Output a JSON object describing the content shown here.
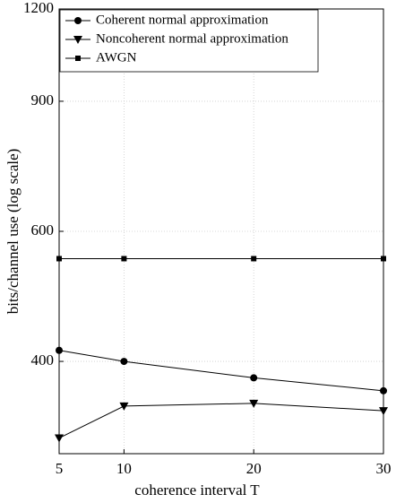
{
  "chart_data": {
    "type": "line",
    "xlabel": "coherence interval T",
    "ylabel": "bits/channel use (log scale)",
    "x": [
      5,
      10,
      20,
      30
    ],
    "series": [
      {
        "name": "Coherent normal approximation",
        "color": "#000000",
        "marker": "circle",
        "values": [
          414,
          400,
          380,
          365
        ]
      },
      {
        "name": "Noncoherent normal approximation",
        "color": "#000000",
        "marker": "triangle-down",
        "values": [
          315,
          348,
          351,
          343
        ]
      },
      {
        "name": "AWGN",
        "color": "#000000",
        "marker": "square",
        "values": [
          551,
          551,
          551,
          551
        ]
      }
    ],
    "xlim": [
      5,
      30
    ],
    "xticks": [
      5,
      10,
      20,
      30
    ],
    "ylim": [
      300,
      1200
    ],
    "yticks": [
      400,
      600,
      900,
      1200
    ],
    "yscale": "log",
    "grid": true,
    "legend": "upper left"
  }
}
